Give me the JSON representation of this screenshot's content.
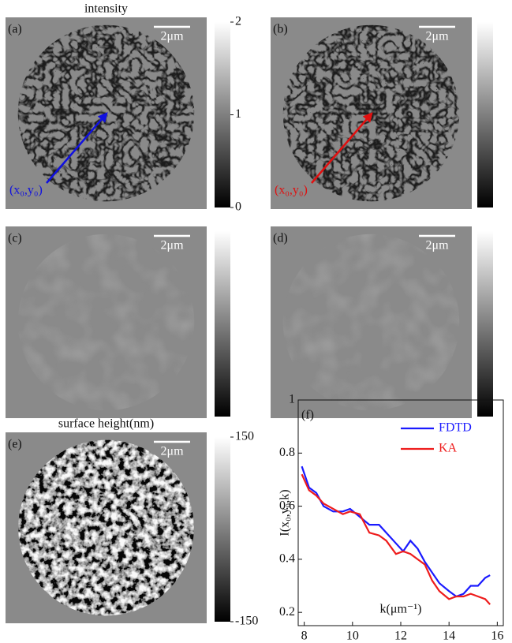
{
  "panels": [
    {
      "label": "(a)",
      "title": "intensity",
      "scale_bar": "2μm",
      "annotation": "(x₀,y₀)",
      "arrow_color": "#1010e0",
      "colorbar": {
        "lim": [
          0,
          2
        ],
        "ticks": [
          0,
          1,
          2
        ]
      }
    },
    {
      "label": "(b)",
      "scale_bar": "2μm",
      "annotation": "(x₀,y₀)",
      "arrow_color": "#e01010",
      "colorbar": {}
    },
    {
      "label": "(c)",
      "scale_bar": "2μm",
      "colorbar": {}
    },
    {
      "label": "(d)",
      "scale_bar": "2μm",
      "colorbar": {}
    },
    {
      "label": "(e)",
      "title": "surface height(nm)",
      "scale_bar": "2μm",
      "colorbar": {
        "lim": [
          -150,
          150
        ],
        "ticks": [
          -150,
          150
        ]
      }
    }
  ],
  "chart_data": {
    "type": "line",
    "label": "(f)",
    "xlabel": "k(μm⁻¹)",
    "ylabel": "I(x₀,y₀,k)",
    "x": [
      7.9,
      8.2,
      8.5,
      8.8,
      9.2,
      9.6,
      9.9,
      10.3,
      10.7,
      11.1,
      11.4,
      11.8,
      12.1,
      12.4,
      12.7,
      13.0,
      13.3,
      13.6,
      14.0,
      14.3,
      14.6,
      14.9,
      15.2,
      15.5,
      15.7
    ],
    "series": [
      {
        "name": "FDTD",
        "color": "#1a1aff",
        "values": [
          0.75,
          0.67,
          0.65,
          0.6,
          0.58,
          0.58,
          0.59,
          0.56,
          0.53,
          0.53,
          0.5,
          0.46,
          0.43,
          0.47,
          0.44,
          0.39,
          0.35,
          0.31,
          0.28,
          0.26,
          0.27,
          0.3,
          0.3,
          0.33,
          0.34
        ]
      },
      {
        "name": "KA",
        "color": "#ee1c1c",
        "values": [
          0.72,
          0.66,
          0.64,
          0.61,
          0.59,
          0.57,
          0.58,
          0.57,
          0.5,
          0.49,
          0.47,
          0.42,
          0.43,
          0.42,
          0.4,
          0.38,
          0.32,
          0.28,
          0.25,
          0.26,
          0.26,
          0.27,
          0.26,
          0.25,
          0.23
        ]
      }
    ],
    "xlim": [
      7.75,
      16.25
    ],
    "ylim": [
      0.15,
      1
    ],
    "xticks": [
      8,
      10,
      12,
      14,
      16
    ],
    "yticks": [
      0.2,
      0.4,
      0.6,
      0.8,
      1
    ],
    "legend": "upper right"
  }
}
